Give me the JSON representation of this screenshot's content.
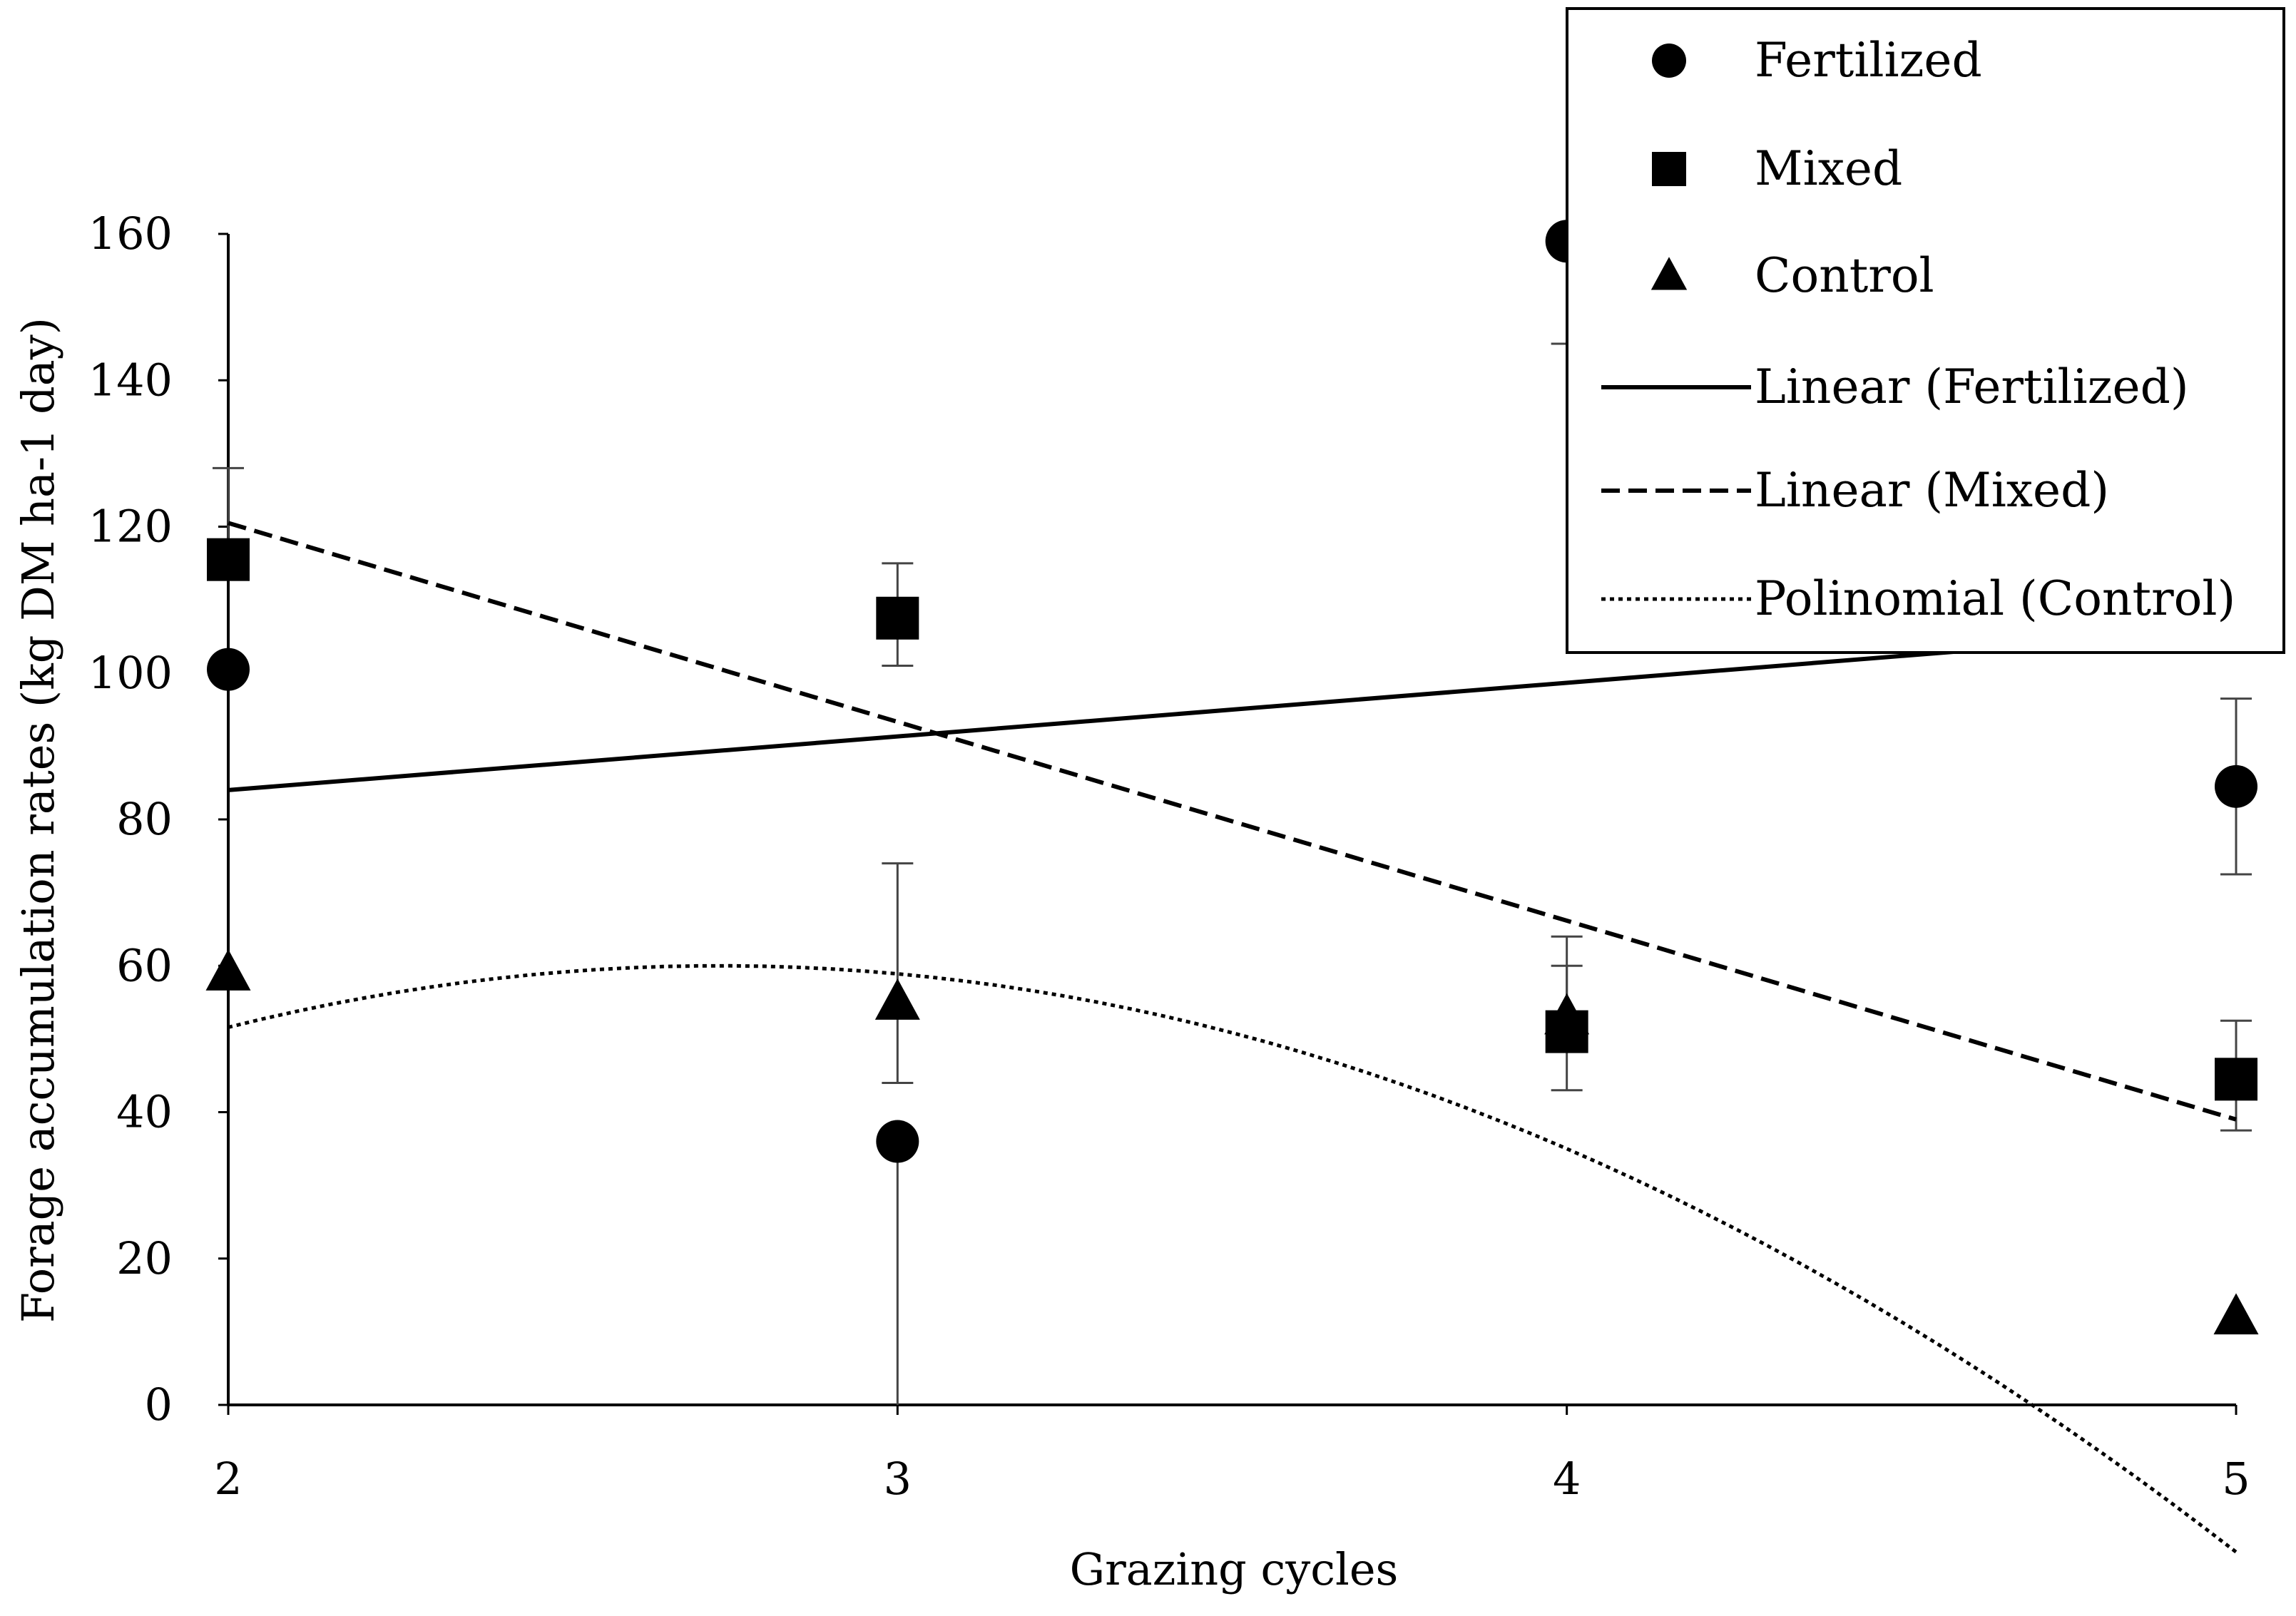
{
  "chart_data": {
    "type": "scatter",
    "title": "",
    "xlabel": "Grazing cycles",
    "ylabel": "Forage accumulation rates (kg DM ha-1 day)",
    "xlim": [
      2,
      5
    ],
    "ylim": [
      0,
      160
    ],
    "x_ticks": [
      "2",
      "3",
      "4",
      "5"
    ],
    "y_ticks": [
      "0",
      "20",
      "40",
      "60",
      "80",
      "100",
      "120",
      "140",
      "160"
    ],
    "x": [
      2,
      3,
      4,
      5
    ],
    "series": [
      {
        "name": "Fertilized",
        "marker": "circle",
        "values": [
          100.5,
          36,
          159,
          84.5
        ],
        "error_up": [
          0,
          0,
          0,
          12
        ],
        "error_down": [
          0,
          36,
          14,
          12
        ]
      },
      {
        "name": "Mixed",
        "marker": "square",
        "values": [
          115.5,
          107.5,
          51,
          44.5
        ],
        "error_up": [
          12.5,
          7.5,
          9,
          8
        ],
        "error_down": [
          0,
          6.5,
          8,
          7
        ]
      },
      {
        "name": "Control",
        "marker": "triangle",
        "values": [
          59,
          55,
          53,
          12
        ],
        "error_up": [
          0,
          19,
          11,
          0
        ],
        "error_down": [
          0,
          11,
          0,
          0
        ]
      }
    ],
    "trendlines": [
      {
        "name": "Linear (Fertilized)",
        "style": "solid",
        "kind": "linear",
        "points": [
          [
            2,
            84
          ],
          [
            5,
            106
          ]
        ]
      },
      {
        "name": "Linear (Mixed)",
        "style": "dashed",
        "kind": "linear",
        "points": [
          [
            2,
            120.5
          ],
          [
            5,
            39
          ]
        ]
      },
      {
        "name": "Polinomial (Control)",
        "style": "dotted",
        "kind": "polynomial",
        "coefficients": [
          -56.6,
          85.3,
          -15.6
        ]
      }
    ],
    "legend": {
      "position": "top-right",
      "entries": [
        "Fertilized",
        "Mixed",
        "Control",
        "Linear (Fertilized)",
        "Linear (Mixed)",
        "Polinomial (Control)"
      ]
    },
    "grid": false
  }
}
